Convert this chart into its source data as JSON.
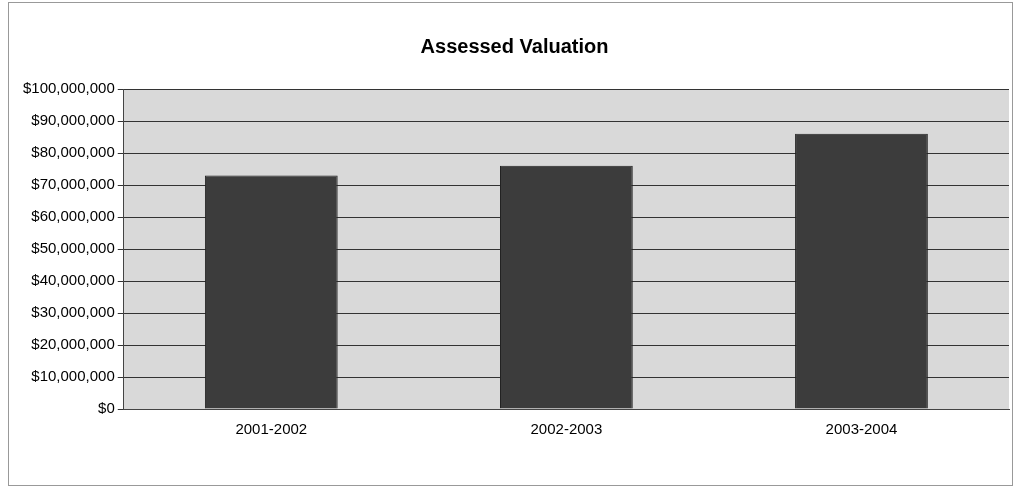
{
  "chart_data": {
    "type": "bar",
    "title": "Assessed Valuation",
    "categories": [
      "2001-2002",
      "2002-2003",
      "2003-2004"
    ],
    "values": [
      73000000,
      76000000,
      86000000
    ],
    "color": "#3c3c3c",
    "ylim": [
      0,
      100000000
    ],
    "yticks": [
      {
        "value": 0,
        "label": "$0"
      },
      {
        "value": 10000000,
        "label": "$10,000,000"
      },
      {
        "value": 20000000,
        "label": "$20,000,000"
      },
      {
        "value": 30000000,
        "label": "$30,000,000"
      },
      {
        "value": 40000000,
        "label": "$40,000,000"
      },
      {
        "value": 50000000,
        "label": "$50,000,000"
      },
      {
        "value": 60000000,
        "label": "$60,000,000"
      },
      {
        "value": 70000000,
        "label": "$70,000,000"
      },
      {
        "value": 80000000,
        "label": "$80,000,000"
      },
      {
        "value": 90000000,
        "label": "$90,000,000"
      },
      {
        "value": 100000000,
        "label": "$100,000,000"
      }
    ],
    "grid": "y",
    "legend": false
  }
}
